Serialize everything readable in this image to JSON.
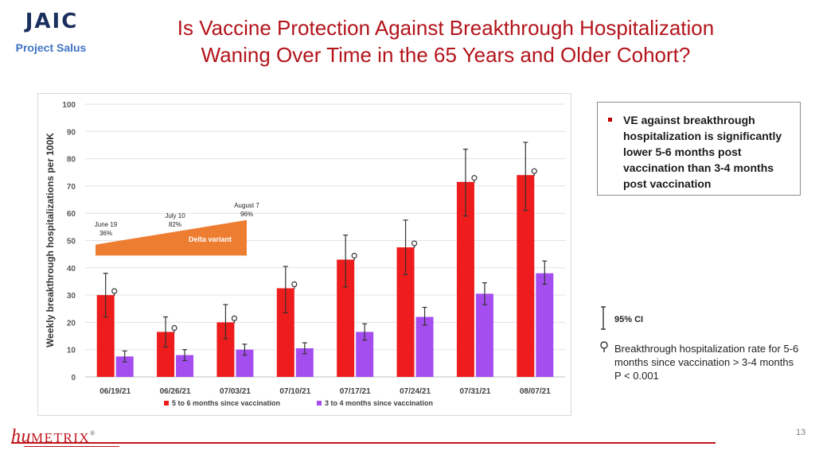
{
  "header": {
    "logo_text": "JAIC",
    "project": "Project Salus",
    "title_line1": "Is Vaccine Protection Against Breakthrough Hospitalization",
    "title_line2": "Waning Over Time in the 65 Years and Older Cohort?"
  },
  "chart_data": {
    "type": "bar",
    "title": "",
    "ylabel": "Weekly breakthrough hospitalizations per 100K",
    "xlabel": "",
    "ylim": [
      0,
      100
    ],
    "yticks": [
      0,
      10,
      20,
      30,
      40,
      50,
      60,
      70,
      80,
      90,
      100
    ],
    "grid": true,
    "legend_position": "bottom",
    "categories": [
      "06/19/21",
      "06/26/21",
      "07/03/21",
      "07/10/21",
      "07/17/21",
      "07/24/21",
      "07/31/21",
      "08/07/21"
    ],
    "series": [
      {
        "name": "5 to 6 months since vaccination",
        "color": "#ee1c1c",
        "values": [
          30,
          16.5,
          20,
          32.5,
          43,
          47.5,
          71.5,
          74
        ],
        "ci_low": [
          22,
          11,
          14,
          23.5,
          33,
          37.5,
          59,
          61
        ],
        "ci_high": [
          38,
          22,
          26.5,
          40.5,
          52,
          57.5,
          83.5,
          86
        ],
        "significant": [
          true,
          true,
          true,
          true,
          true,
          true,
          true,
          true
        ]
      },
      {
        "name": "3 to 4 months since vaccination",
        "color": "#a54ef0",
        "values": [
          7.5,
          8,
          10,
          10.5,
          16.5,
          22,
          30.5,
          38
        ],
        "ci_low": [
          5.5,
          6,
          8,
          8.5,
          13.5,
          19,
          26.5,
          34
        ],
        "ci_high": [
          9.5,
          10,
          12,
          12.5,
          19.5,
          25.5,
          34.5,
          42.5
        ]
      }
    ],
    "annotations": {
      "delta_label": "Delta variant",
      "delta_color": "#ed7d31",
      "points": [
        {
          "date": "June 19",
          "pct": "36%"
        },
        {
          "date": "July 10",
          "pct": "82%"
        },
        {
          "date": "August 7",
          "pct": "96%"
        }
      ]
    }
  },
  "callout": {
    "text": "VE against breakthrough hospitalization is significantly lower 5-6 months post vaccination than 3-4 months post vaccination"
  },
  "key": {
    "ci_label": "95% CI",
    "sig_text": "Breakthrough hospitalization rate for 5-6 months since vaccination > 3-4 months",
    "p_value": "P < 0.001"
  },
  "footer": {
    "brand_hu": "hu",
    "brand_metrix": "METRIX",
    "brand_mark": "®",
    "page_number": "13"
  }
}
